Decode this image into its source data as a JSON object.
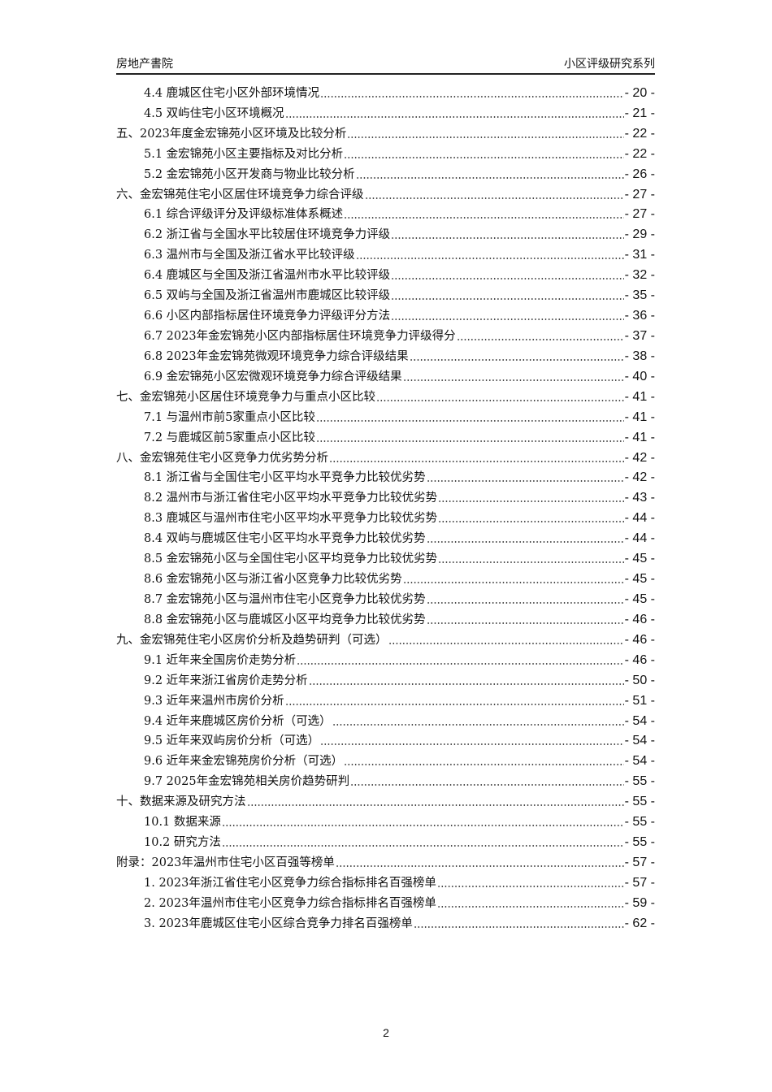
{
  "header": {
    "left": "房地产書院",
    "right": "小区评级研究系列"
  },
  "toc": [
    {
      "level": 1,
      "title": "4.4 鹿城区住宅小区外部环境情况",
      "page": "- 20 -"
    },
    {
      "level": 1,
      "title": "4.5 双屿住宅小区环境概况",
      "page": "- 21 -"
    },
    {
      "level": 0,
      "title": "五、2023年度金宏锦苑小区环境及比较分析",
      "page": "- 22 -"
    },
    {
      "level": 1,
      "title": "5.1 金宏锦苑小区主要指标及对比分析",
      "page": "- 22 -"
    },
    {
      "level": 1,
      "title": "5.2 金宏锦苑小区开发商与物业比较分析",
      "page": "- 26 -"
    },
    {
      "level": 0,
      "title": "六、金宏锦苑住宅小区居住环境竞争力综合评级",
      "page": "- 27 -"
    },
    {
      "level": 1,
      "title": "6.1 综合评级评分及评级标准体系概述",
      "page": "- 27 -"
    },
    {
      "level": 1,
      "title": "6.2 浙江省与全国水平比较居住环境竞争力评级",
      "page": "- 29 -"
    },
    {
      "level": 1,
      "title": "6.3 温州市与全国及浙江省水平比较评级",
      "page": "- 31 -"
    },
    {
      "level": 1,
      "title": "6.4 鹿城区与全国及浙江省温州市水平比较评级",
      "page": "- 32 -"
    },
    {
      "level": 1,
      "title": "6.5 双屿与全国及浙江省温州市鹿城区比较评级",
      "page": "- 35 -"
    },
    {
      "level": 1,
      "title": "6.6 小区内部指标居住环境竞争力评级评分方法",
      "page": "- 36 -"
    },
    {
      "level": 1,
      "title": "6.7 2023年金宏锦苑小区内部指标居住环境竞争力评级得分",
      "page": "- 37 -"
    },
    {
      "level": 1,
      "title": "6.8 2023年金宏锦苑微观环境竞争力综合评级结果",
      "page": "- 38 -"
    },
    {
      "level": 1,
      "title": "6.9 金宏锦苑小区宏微观环境竞争力综合评级结果",
      "page": "- 40 -"
    },
    {
      "level": 0,
      "title": "七、金宏锦苑小区居住环境竞争力与重点小区比较",
      "page": "- 41 -"
    },
    {
      "level": 1,
      "title": "7.1 与温州市前5家重点小区比较",
      "page": "- 41 -"
    },
    {
      "level": 1,
      "title": "7.2 与鹿城区前5家重点小区比较",
      "page": "- 41 -"
    },
    {
      "level": 0,
      "title": "八、金宏锦苑住宅小区竞争力优劣势分析",
      "page": "- 42 -"
    },
    {
      "level": 1,
      "title": "8.1 浙江省与全国住宅小区平均水平竞争力比较优劣势",
      "page": "- 42 -"
    },
    {
      "level": 1,
      "title": "8.2 温州市与浙江省住宅小区平均水平竞争力比较优劣势",
      "page": "- 43 -"
    },
    {
      "level": 1,
      "title": "8.3 鹿城区与温州市住宅小区平均水平竞争力比较优劣势",
      "page": "- 44 -"
    },
    {
      "level": 1,
      "title": "8.4 双屿与鹿城区住宅小区平均水平竞争力比较优劣势",
      "page": "- 44 -"
    },
    {
      "level": 1,
      "title": "8.5 金宏锦苑小区与全国住宅小区平均竞争力比较优劣势",
      "page": "- 45 -"
    },
    {
      "level": 1,
      "title": "8.6 金宏锦苑小区与浙江省小区竞争力比较优劣势",
      "page": "- 45 -"
    },
    {
      "level": 1,
      "title": "8.7 金宏锦苑小区与温州市住宅小区竞争力比较优劣势",
      "page": "- 45 -"
    },
    {
      "level": 1,
      "title": "8.8 金宏锦苑小区与鹿城区小区平均竞争力比较优劣势",
      "page": "- 46 -"
    },
    {
      "level": 0,
      "title": "九、金宏锦苑住宅小区房价分析及趋势研判（可选）",
      "page": "- 46 -"
    },
    {
      "level": 1,
      "title": "9.1 近年来全国房价走势分析",
      "page": "- 46 -"
    },
    {
      "level": 1,
      "title": "9.2 近年来浙江省房价走势分析",
      "page": "- 50 -"
    },
    {
      "level": 1,
      "title": "9.3 近年来温州市房价分析",
      "page": "- 51 -"
    },
    {
      "level": 1,
      "title": "9.4 近年来鹿城区房价分析（可选）",
      "page": "- 54 -"
    },
    {
      "level": 1,
      "title": "9.5 近年来双屿房价分析（可选）",
      "page": "- 54 -"
    },
    {
      "level": 1,
      "title": "9.6 近年来金宏锦苑房价分析（可选）",
      "page": "- 54 -"
    },
    {
      "level": 1,
      "title": "9.7 2025年金宏锦苑相关房价趋势研判",
      "page": "- 55 -"
    },
    {
      "level": 0,
      "title": "十、数据来源及研究方法",
      "page": "- 55 -"
    },
    {
      "level": 1,
      "title": "10.1 数据来源",
      "page": "- 55 -"
    },
    {
      "level": 1,
      "title": "10.2 研究方法",
      "page": "- 55 -"
    },
    {
      "level": 0,
      "title": "附录：2023年温州市住宅小区百强等榜单",
      "page": "- 57 -"
    },
    {
      "level": 1,
      "title": "1.  2023年浙江省住宅小区竞争力综合指标排名百强榜单",
      "page": "- 57 -"
    },
    {
      "level": 1,
      "title": "2.  2023年温州市住宅小区竞争力综合指标排名百强榜单",
      "page": "- 59 -"
    },
    {
      "level": 1,
      "title": "3.  2023年鹿城区住宅小区综合竞争力排名百强榜单",
      "page": "- 62 -"
    }
  ],
  "footer": {
    "page_number": "2"
  }
}
